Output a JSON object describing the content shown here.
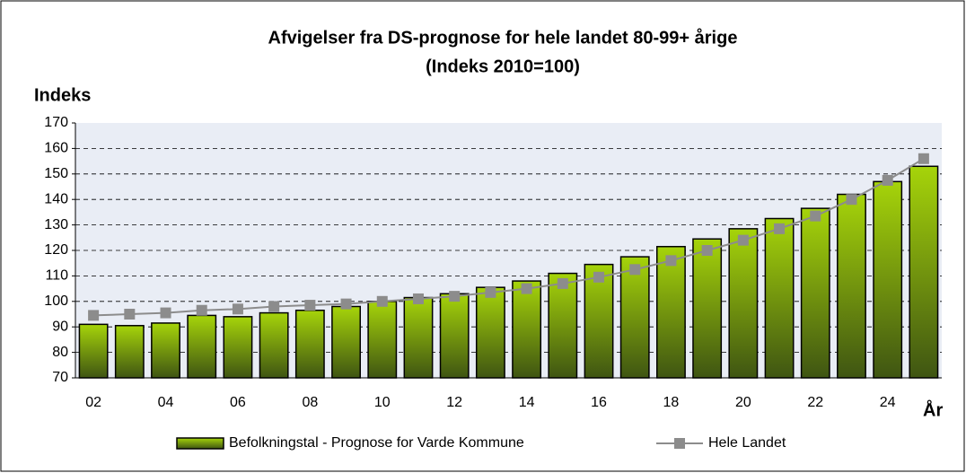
{
  "chart_data": {
    "type": "bar",
    "title": "Afvigelser fra DS-prognose for hele landet 80-99+ årige",
    "subtitle": "(Indeks 2010=100)",
    "y_label": "Indeks",
    "x_label": "År",
    "categories": [
      "02",
      null,
      "04",
      null,
      "06",
      null,
      "08",
      null,
      "10",
      null,
      "12",
      null,
      "14",
      null,
      "16",
      null,
      "18",
      null,
      "20",
      null,
      "22",
      null,
      "24",
      null
    ],
    "series": [
      {
        "name": "Befolkningstal - Prognose for Varde Kommune",
        "type": "bar",
        "color": "#a6d40a",
        "values": [
          91,
          90.5,
          91.5,
          94.5,
          94,
          95.5,
          96.5,
          98,
          100,
          101.5,
          103,
          105.5,
          108,
          111,
          114.5,
          117.5,
          121.5,
          124.5,
          128.5,
          132.5,
          136.5,
          142,
          147,
          153
        ]
      },
      {
        "name": "Hele Landet",
        "type": "line",
        "color": "#8c8c8c",
        "values": [
          94.5,
          95,
          95.5,
          96.5,
          97,
          98,
          98.5,
          99,
          100,
          101,
          102,
          103.5,
          105,
          107,
          109.5,
          112.5,
          116,
          120,
          124,
          128.5,
          133.5,
          140,
          147.5,
          156
        ]
      }
    ],
    "ylim": [
      70,
      170
    ],
    "yticks": [
      70,
      80,
      90,
      100,
      110,
      120,
      130,
      140,
      150,
      160,
      170
    ],
    "grid": true,
    "legend": "bottom"
  }
}
